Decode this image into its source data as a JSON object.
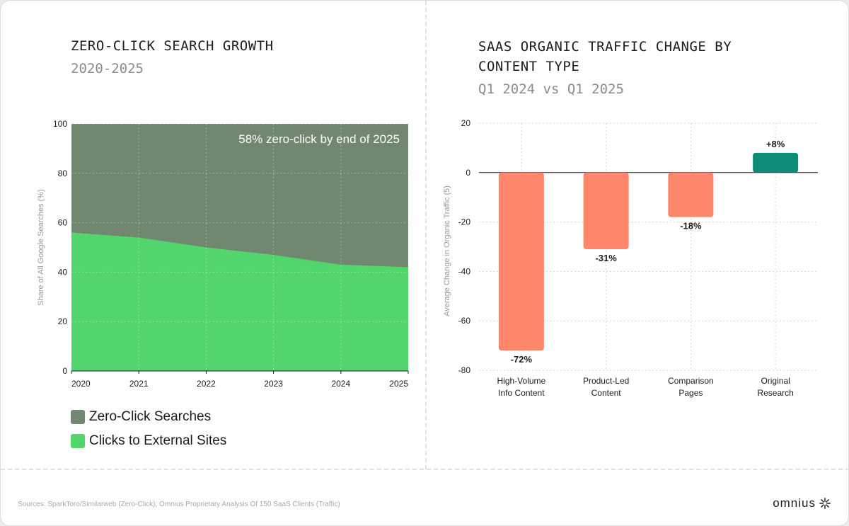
{
  "left": {
    "title": "ZERO-CLICK SEARCH GROWTH",
    "subtitle": "2020-2025",
    "annotation": "58% zero-click by end of 2025",
    "legend": [
      {
        "label": "Zero-Click Searches",
        "color": "#71876f"
      },
      {
        "label": "Clicks to External Sites",
        "color": "#52d56c"
      }
    ]
  },
  "right": {
    "title_line1": "SAAS ORGANIC TRAFFIC CHANGE BY",
    "title_line2": "CONTENT TYPE",
    "subtitle": "Q1 2024 vs Q1 2025"
  },
  "footer": {
    "source": "Sources: SparkToro/Similarweb (Zero-Click); Omnius Proprietary Analysis Of 150 SaaS Clients (Traffic)",
    "logo_text": "omnius",
    "logo_icon": "omnius-asterisk-icon"
  },
  "chart_data": [
    {
      "type": "area",
      "x": [
        2020,
        2021,
        2022,
        2023,
        2024,
        2025
      ],
      "series": [
        {
          "name": "Clicks to External Sites",
          "values": [
            56,
            54,
            50,
            47,
            43,
            42
          ],
          "color": "#52d56c"
        },
        {
          "name": "Zero-Click Searches",
          "values": [
            44,
            46,
            50,
            53,
            57,
            58
          ],
          "color": "#71876f"
        }
      ],
      "stacked": true,
      "ylabel": "Share of All Google Searches (%)",
      "ylim": [
        0,
        100
      ],
      "yticks": [
        0,
        20,
        40,
        60,
        80,
        100
      ],
      "xticks": [
        "2020",
        "2021",
        "2022",
        "2023",
        "2024",
        "2025"
      ],
      "grid": true
    },
    {
      "type": "bar",
      "categories": [
        [
          "High-Volume",
          "Info Content"
        ],
        [
          "Product-Led",
          "Content"
        ],
        [
          "Comparison",
          "Pages"
        ],
        [
          "Original",
          "Research"
        ]
      ],
      "values": [
        -72,
        -31,
        -18,
        8
      ],
      "labels": [
        "-72%",
        "-31%",
        "-18%",
        "+8%"
      ],
      "colors": [
        "#fe866a",
        "#fe866a",
        "#fe866a",
        "#0d8c78"
      ],
      "ylabel": "Average Change in Organic Traffic (5)",
      "ylim": [
        -80,
        20
      ],
      "yticks": [
        20,
        0,
        -20,
        -40,
        -60,
        -80
      ],
      "grid": true
    }
  ]
}
